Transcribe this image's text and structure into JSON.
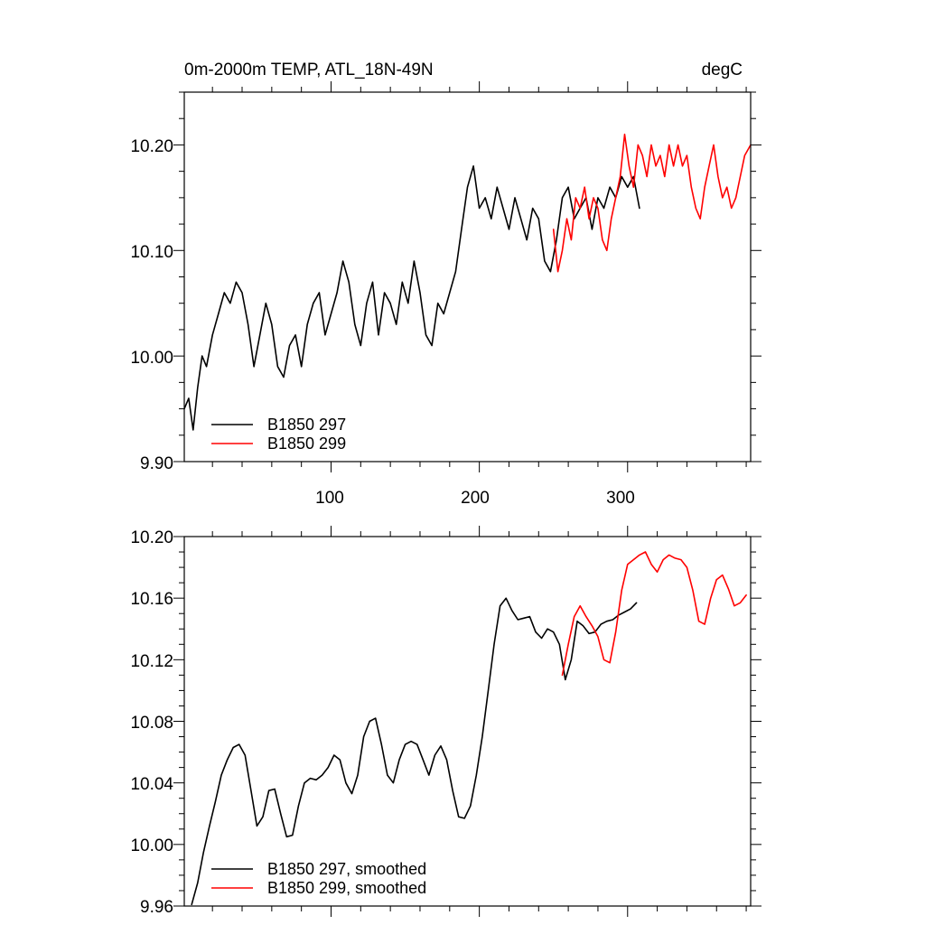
{
  "colors": {
    "b297": "#000000",
    "b299": "#ff0000"
  },
  "chart_data": [
    {
      "type": "line",
      "title": "0m-2000m TEMP, ATL_18N-49N",
      "units": "degC",
      "xlim": [
        1,
        383
      ],
      "ylim": [
        9.9,
        10.25
      ],
      "xticks": [
        100,
        200,
        300
      ],
      "xtick_labels": [
        "100",
        "200",
        "300"
      ],
      "yticks": [
        9.9,
        10.0,
        10.1,
        10.2
      ],
      "ytick_labels": [
        "9.90",
        "10.00",
        "10.10",
        "10.20"
      ],
      "legend": [
        "B1850 297",
        "B1850 299"
      ],
      "legend_position": "bottom-left",
      "series": [
        {
          "name": "B1850 297",
          "color": "#000000",
          "x": [
            1,
            4,
            7,
            10,
            13,
            16,
            20,
            24,
            28,
            32,
            36,
            40,
            44,
            48,
            52,
            56,
            60,
            64,
            68,
            72,
            76,
            80,
            84,
            88,
            92,
            96,
            100,
            104,
            108,
            112,
            116,
            120,
            124,
            128,
            132,
            136,
            140,
            144,
            148,
            152,
            156,
            160,
            164,
            168,
            172,
            176,
            180,
            184,
            188,
            192,
            196,
            200,
            204,
            208,
            212,
            216,
            220,
            224,
            228,
            232,
            236,
            240,
            244,
            248,
            252,
            256,
            260,
            264,
            268,
            272,
            276,
            280,
            284,
            288,
            292,
            296,
            300,
            304,
            308
          ],
          "values": [
            9.95,
            9.96,
            9.93,
            9.97,
            10.0,
            9.99,
            10.02,
            10.04,
            10.06,
            10.05,
            10.07,
            10.06,
            10.03,
            9.99,
            10.02,
            10.05,
            10.03,
            9.99,
            9.98,
            10.01,
            10.02,
            9.99,
            10.03,
            10.05,
            10.06,
            10.02,
            10.04,
            10.06,
            10.09,
            10.07,
            10.03,
            10.01,
            10.05,
            10.07,
            10.02,
            10.06,
            10.05,
            10.03,
            10.07,
            10.05,
            10.09,
            10.06,
            10.02,
            10.01,
            10.05,
            10.04,
            10.06,
            10.08,
            10.12,
            10.16,
            10.18,
            10.14,
            10.15,
            10.13,
            10.16,
            10.14,
            10.12,
            10.15,
            10.13,
            10.11,
            10.14,
            10.13,
            10.09,
            10.08,
            10.11,
            10.15,
            10.16,
            10.13,
            10.14,
            10.15,
            10.12,
            10.15,
            10.14,
            10.16,
            10.15,
            10.17,
            10.16,
            10.17,
            10.14
          ]
        },
        {
          "name": "B1850 299",
          "color": "#ff0000",
          "x": [
            250,
            253,
            256,
            259,
            262,
            265,
            268,
            271,
            274,
            277,
            280,
            283,
            286,
            289,
            292,
            295,
            298,
            301,
            304,
            307,
            310,
            313,
            316,
            319,
            322,
            325,
            328,
            331,
            334,
            337,
            340,
            343,
            346,
            349,
            352,
            355,
            358,
            361,
            364,
            367,
            370,
            373,
            376,
            379,
            383
          ],
          "values": [
            10.12,
            10.08,
            10.1,
            10.13,
            10.11,
            10.15,
            10.14,
            10.16,
            10.13,
            10.15,
            10.14,
            10.11,
            10.1,
            10.13,
            10.15,
            10.17,
            10.21,
            10.18,
            10.16,
            10.2,
            10.19,
            10.17,
            10.2,
            10.18,
            10.19,
            10.17,
            10.2,
            10.18,
            10.2,
            10.18,
            10.19,
            10.16,
            10.14,
            10.13,
            10.16,
            10.18,
            10.2,
            10.17,
            10.15,
            10.16,
            10.14,
            10.15,
            10.17,
            10.19,
            10.2
          ]
        }
      ]
    },
    {
      "type": "line",
      "xlim": [
        1,
        383
      ],
      "ylim": [
        9.96,
        10.2
      ],
      "xticks": [
        100,
        200,
        300
      ],
      "yticks": [
        9.96,
        10.0,
        10.04,
        10.08,
        10.12,
        10.16,
        10.2
      ],
      "ytick_labels": [
        "9.96",
        "10.00",
        "10.04",
        "10.08",
        "10.12",
        "10.16",
        "10.20"
      ],
      "legend": [
        "B1850 297, smoothed",
        "B1850 299, smoothed"
      ],
      "legend_position": "bottom-left",
      "series": [
        {
          "name": "B1850 297, smoothed",
          "color": "#000000",
          "x": [
            6,
            10,
            14,
            18,
            22,
            26,
            30,
            34,
            38,
            42,
            46,
            50,
            54,
            58,
            62,
            66,
            70,
            74,
            78,
            82,
            86,
            90,
            94,
            98,
            102,
            106,
            110,
            114,
            118,
            122,
            126,
            130,
            134,
            138,
            142,
            146,
            150,
            154,
            158,
            162,
            166,
            170,
            174,
            178,
            182,
            186,
            190,
            194,
            198,
            202,
            206,
            210,
            214,
            218,
            222,
            226,
            230,
            234,
            238,
            242,
            246,
            250,
            254,
            258,
            262,
            266,
            270,
            274,
            278,
            282,
            286,
            290,
            294,
            298,
            302,
            306
          ],
          "values": [
            9.961,
            9.975,
            9.995,
            10.012,
            10.028,
            10.045,
            10.055,
            10.063,
            10.065,
            10.058,
            10.035,
            10.012,
            10.018,
            10.035,
            10.036,
            10.02,
            10.005,
            10.006,
            10.025,
            10.04,
            10.043,
            10.042,
            10.045,
            10.05,
            10.058,
            10.055,
            10.04,
            10.033,
            10.045,
            10.07,
            10.08,
            10.082,
            10.065,
            10.045,
            10.04,
            10.055,
            10.065,
            10.067,
            10.065,
            10.055,
            10.045,
            10.058,
            10.064,
            10.055,
            10.035,
            10.018,
            10.017,
            10.025,
            10.045,
            10.07,
            10.1,
            10.13,
            10.155,
            10.16,
            10.152,
            10.146,
            10.147,
            10.148,
            10.138,
            10.134,
            10.14,
            10.138,
            10.13,
            10.107,
            10.12,
            10.145,
            10.142,
            10.137,
            10.138,
            10.143,
            10.145,
            10.146,
            10.149,
            10.151,
            10.153,
            10.157
          ]
        },
        {
          "name": "B1850 299, smoothed",
          "color": "#ff0000",
          "x": [
            256,
            260,
            264,
            268,
            272,
            276,
            280,
            284,
            288,
            292,
            296,
            300,
            304,
            308,
            312,
            316,
            320,
            324,
            328,
            332,
            336,
            340,
            344,
            348,
            352,
            356,
            360,
            364,
            368,
            372,
            376,
            380
          ],
          "values": [
            10.11,
            10.13,
            10.148,
            10.155,
            10.148,
            10.142,
            10.135,
            10.12,
            10.118,
            10.138,
            10.165,
            10.182,
            10.185,
            10.188,
            10.19,
            10.182,
            10.177,
            10.185,
            10.188,
            10.186,
            10.185,
            10.18,
            10.165,
            10.145,
            10.143,
            10.16,
            10.172,
            10.175,
            10.166,
            10.155,
            10.157,
            10.162
          ]
        }
      ]
    }
  ]
}
